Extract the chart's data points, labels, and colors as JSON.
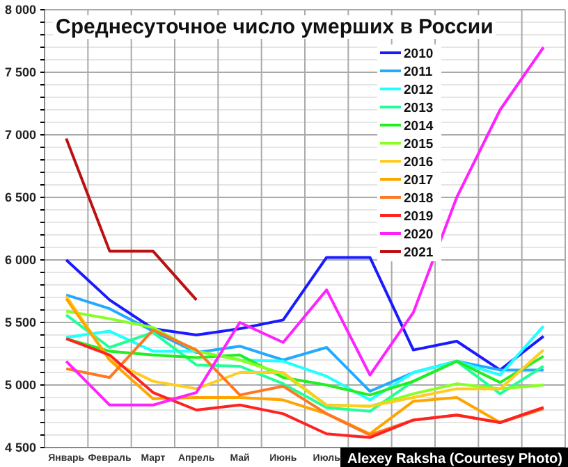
{
  "chart_data": {
    "type": "line",
    "title": "Среднесуточное число умерших в России",
    "categories": [
      "Январь",
      "Февраль",
      "Март",
      "Апрель",
      "Май",
      "Июнь",
      "Июль",
      null,
      null,
      null,
      null,
      null
    ],
    "ylim": [
      4500,
      8000
    ],
    "yticks": [
      {
        "value": 4500,
        "label": "4 500"
      },
      {
        "value": 4600,
        "label": null
      },
      {
        "value": 4700,
        "label": null
      },
      {
        "value": 4800,
        "label": null
      },
      {
        "value": 4900,
        "label": null
      },
      {
        "value": 5000,
        "label": "5 000"
      },
      {
        "value": 5100,
        "label": null
      },
      {
        "value": 5200,
        "label": null
      },
      {
        "value": 5300,
        "label": null
      },
      {
        "value": 5400,
        "label": null
      },
      {
        "value": 5500,
        "label": "5 500"
      },
      {
        "value": 5600,
        "label": null
      },
      {
        "value": 5700,
        "label": null
      },
      {
        "value": 5800,
        "label": null
      },
      {
        "value": 5900,
        "label": null
      },
      {
        "value": 6000,
        "label": "6 000"
      },
      {
        "value": 6100,
        "label": null
      },
      {
        "value": 6200,
        "label": null
      },
      {
        "value": 6300,
        "label": null
      },
      {
        "value": 6400,
        "label": null
      },
      {
        "value": 6500,
        "label": "6 500"
      },
      {
        "value": 6600,
        "label": null
      },
      {
        "value": 6700,
        "label": null
      },
      {
        "value": 6800,
        "label": null
      },
      {
        "value": 6900,
        "label": null
      },
      {
        "value": 7000,
        "label": "7 000"
      },
      {
        "value": 7100,
        "label": null
      },
      {
        "value": 7200,
        "label": null
      },
      {
        "value": 7300,
        "label": null
      },
      {
        "value": 7400,
        "label": null
      },
      {
        "value": 7500,
        "label": "7 500"
      },
      {
        "value": 7600,
        "label": null
      },
      {
        "value": 7700,
        "label": null
      },
      {
        "value": 7800,
        "label": null
      },
      {
        "value": 7900,
        "label": null
      },
      {
        "value": 8000,
        "label": "8 000"
      }
    ],
    "grid": true,
    "legend": "top right",
    "marker": "none",
    "line_style": "solid",
    "annotations": [
      "Alexey Raksha (Courtesy Photo)"
    ],
    "series": [
      {
        "name": "2010",
        "color": "#1a1aff",
        "values": [
          6000,
          5680,
          5450,
          5400,
          5450,
          5520,
          6020,
          6020,
          5280,
          5350,
          5120,
          5390
        ]
      },
      {
        "name": "2011",
        "color": "#22aaff",
        "values": [
          5720,
          5610,
          5430,
          5260,
          5310,
          5200,
          5300,
          4950,
          5100,
          5190,
          5120,
          5120
        ]
      },
      {
        "name": "2012",
        "color": "#22ffff",
        "values": [
          5380,
          5430,
          5270,
          5270,
          5200,
          5190,
          5070,
          4880,
          5100,
          5190,
          5080,
          5470
        ]
      },
      {
        "name": "2013",
        "color": "#22ff99",
        "values": [
          5560,
          5300,
          5420,
          5160,
          5150,
          5010,
          4820,
          4790,
          5030,
          5190,
          4930,
          5150
        ]
      },
      {
        "name": "2014",
        "color": "#22ee22",
        "values": [
          5370,
          5270,
          5240,
          5220,
          5240,
          5060,
          5000,
          4920,
          5030,
          5190,
          5020,
          5230
        ]
      },
      {
        "name": "2015",
        "color": "#88ff22",
        "values": [
          5590,
          5530,
          5460,
          5270,
          5200,
          5090,
          4840,
          4830,
          4930,
          5010,
          4970,
          5000
        ]
      },
      {
        "name": "2016",
        "color": "#ffcc22",
        "values": [
          5710,
          5200,
          5030,
          4970,
          5100,
          5100,
          4840,
          4830,
          4900,
          4970,
          4970,
          5280
        ]
      },
      {
        "name": "2017",
        "color": "#ffa500",
        "values": [
          5690,
          5200,
          4890,
          4900,
          4900,
          4880,
          4770,
          4610,
          4870,
          4900,
          4700,
          4820
        ]
      },
      {
        "name": "2018",
        "color": "#ff7722",
        "values": [
          5130,
          5060,
          5440,
          5280,
          4920,
          4990,
          4770,
          4600,
          4720,
          4760,
          4700,
          4810
        ]
      },
      {
        "name": "2019",
        "color": "#ff2222",
        "values": [
          5370,
          5240,
          4940,
          4800,
          4840,
          4770,
          4610,
          4580,
          4720,
          4760,
          4700,
          4820
        ]
      },
      {
        "name": "2020",
        "color": "#ff22ff",
        "values": [
          5190,
          4840,
          4840,
          4940,
          5500,
          5340,
          5760,
          5080,
          5580,
          6500,
          7200,
          7700
        ]
      },
      {
        "name": "2021",
        "color": "#bb1111",
        "values": [
          6970,
          6070,
          6070,
          5680,
          null,
          null,
          null,
          null,
          null,
          null,
          null,
          null
        ]
      }
    ]
  }
}
